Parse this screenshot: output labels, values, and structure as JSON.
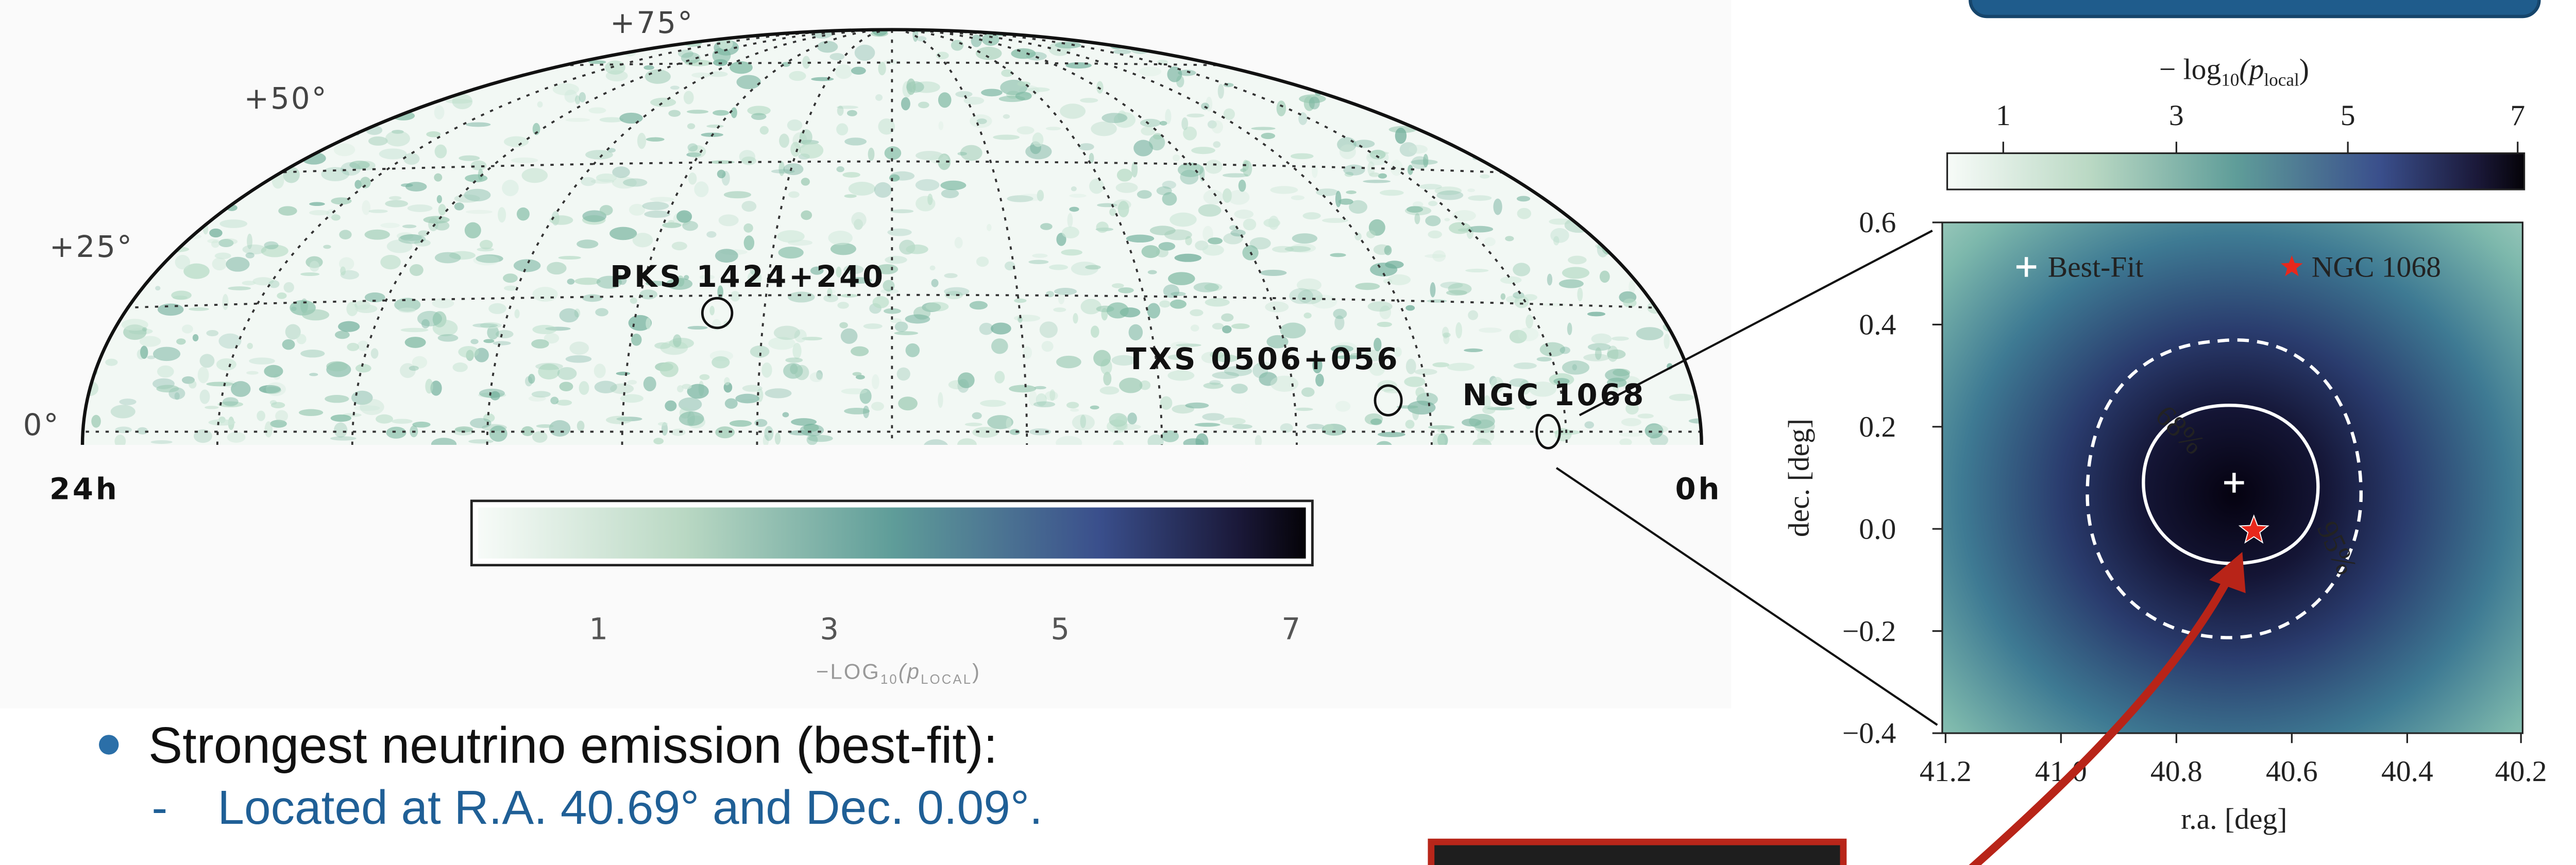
{
  "skymap": {
    "lat_labels": [
      "+75°",
      "+50°",
      "+25°",
      "0°"
    ],
    "ra_labels": [
      "24h",
      "0h"
    ],
    "sources": [
      "PKS 1424+240",
      "TXS 0506+056",
      "NGC 1068"
    ],
    "colorbar": {
      "ticks": [
        "1",
        "3",
        "5",
        "7"
      ],
      "label": {
        "prefix": "−LOG",
        "base": "10",
        "open": "(p",
        "sub": "LOCAL",
        "close": ")"
      }
    }
  },
  "zoom": {
    "colorbar": {
      "label": {
        "prefix": "− log",
        "base": "10",
        "open": "(p",
        "sub": "local",
        "close": ")"
      },
      "ticks": [
        "1",
        "3",
        "5",
        "7"
      ]
    },
    "legend": [
      "Best-Fit",
      "NGC 1068"
    ],
    "contours": [
      "68%",
      "95%"
    ],
    "yticks": [
      "0.6",
      "0.4",
      "0.2",
      "0.0",
      "−0.2",
      "−0.4"
    ],
    "xticks": [
      "41.2",
      "41.0",
      "40.8",
      "40.6",
      "40.4",
      "40.2"
    ],
    "ylabel": "dec. [deg]",
    "xlabel": "r.a. [deg]"
  },
  "bullets": {
    "main": "Strongest neutrino emission (best-fit):",
    "sub": "Located at R.A. 40.69° and Dec. 0.09°."
  }
}
